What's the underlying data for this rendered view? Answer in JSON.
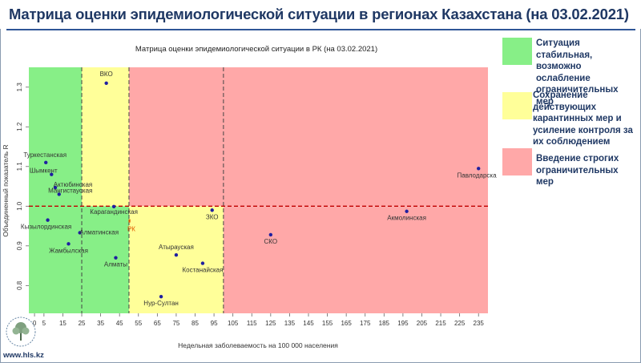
{
  "page": {
    "title": "Матрица оценки эпидемиологической ситуации в регионах Казахстана (на 03.02.2021)",
    "website": "www.hls.kz"
  },
  "legend": [
    {
      "color": "#87ef87",
      "text": "Ситуация стабильная, возможно ослабление ограничительных мер"
    },
    {
      "color": "#ffff99",
      "text": "Сохранение действующих карантинных мер и усиление контроля за их соблюдением"
    },
    {
      "color": "#ffa8a8",
      "text": "Введение строгих ограничительных мер"
    }
  ],
  "icons": {
    "logo": "tree-logo-icon"
  },
  "chart_data": {
    "type": "scatter",
    "title": "Матрица оценки эпидемиологической ситуации в РК (на 03.02.2021)",
    "xlabel": "Недельная заболеваемость на 100 000 населения",
    "ylabel": "Объединенный показатель R",
    "xlim": [
      -3,
      240
    ],
    "ylim": [
      0.73,
      1.35
    ],
    "xticks": [
      "0",
      "5",
      "15",
      "25",
      "35",
      "45",
      "55",
      "65",
      "75",
      "85",
      "95",
      "105",
      "115",
      "125",
      "135",
      "145",
      "155",
      "165",
      "175",
      "185",
      "195",
      "205",
      "215",
      "225",
      "235"
    ],
    "yticks": [
      "0.8",
      "0.9",
      "1.0",
      "1.1",
      "1.2",
      "1.3"
    ],
    "zones": [
      {
        "color": "#87ef87",
        "x": [
          -3,
          50
        ],
        "y": [
          0.73,
          1.35
        ]
      },
      {
        "color": "#ffff99",
        "x": [
          25,
          50
        ],
        "y": [
          1.0,
          1.35
        ]
      },
      {
        "color": "#ffff99",
        "x": [
          50,
          100
        ],
        "y": [
          0.73,
          1.0
        ]
      },
      {
        "color": "#ffa8a8",
        "x": [
          50,
          240
        ],
        "y": [
          1.0,
          1.35
        ]
      },
      {
        "color": "#ffa8a8",
        "x": [
          100,
          240
        ],
        "y": [
          0.73,
          1.0
        ]
      }
    ],
    "reference_lines": {
      "vertical_x": [
        25,
        50,
        100
      ],
      "horizontal_y": 1.0,
      "vertical_color": "#444444",
      "horizontal_color": "#c00000"
    },
    "points_color": "#1f1fa0",
    "points": [
      {
        "label": "ВКО",
        "x": 38,
        "y": 1.31
      },
      {
        "label": "Туркестанская",
        "x": 6,
        "y": 1.11
      },
      {
        "label": "Шымкент",
        "x": 9,
        "y": 1.08
      },
      {
        "label": "Актюбинская",
        "x": 11,
        "y": 1.047
      },
      {
        "label": "Мангистауская",
        "x": 13,
        "y": 1.03
      },
      {
        "label": "Карагандинская",
        "x": 42,
        "y": 0.999
      },
      {
        "label": "ЗКО",
        "x": 94,
        "y": 0.99
      },
      {
        "label": "Кызылординская",
        "x": 7,
        "y": 0.965
      },
      {
        "label": "Алматинская",
        "x": 24,
        "y": 0.933
      },
      {
        "label": "Жамбылская",
        "x": 18,
        "y": 0.905
      },
      {
        "label": "Алматы",
        "x": 43,
        "y": 0.87
      },
      {
        "label": "Атырауская",
        "x": 75,
        "y": 0.877
      },
      {
        "label": "Костанайская",
        "x": 89,
        "y": 0.856
      },
      {
        "label": "Нур-Султан",
        "x": 67,
        "y": 0.772
      },
      {
        "label": "СКО",
        "x": 125,
        "y": 0.928
      },
      {
        "label": "Акмолинская",
        "x": 197,
        "y": 0.987
      },
      {
        "label": "Павлодарская",
        "x": 235,
        "y": 1.095
      }
    ],
    "country_marker": {
      "label": "РК",
      "x": 50,
      "y": 0.959,
      "color": "#e05a00"
    }
  }
}
